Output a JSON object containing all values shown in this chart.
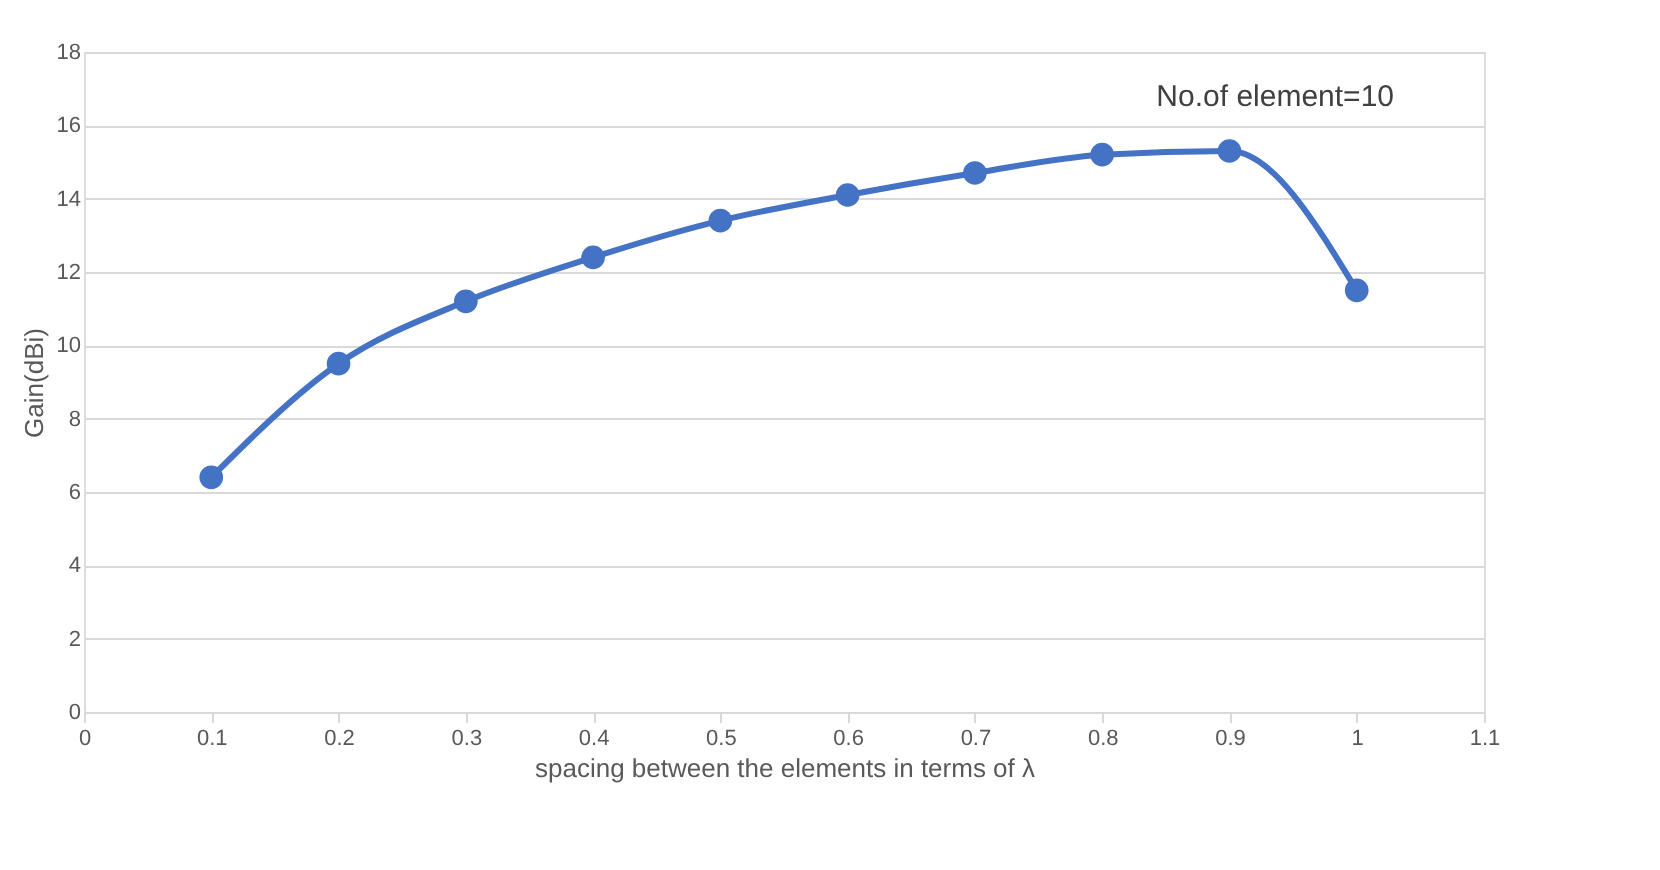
{
  "chart_data": {
    "type": "line",
    "xlabel": "spacing between the elements in terms of λ",
    "ylabel": "Gain(dBi)",
    "x": [
      0.1,
      0.2,
      0.3,
      0.4,
      0.5,
      0.6,
      0.7,
      0.8,
      0.9,
      1.0
    ],
    "series": [
      {
        "color": "#4472c4",
        "values": [
          6.4,
          9.5,
          11.2,
          12.4,
          13.4,
          14.1,
          14.7,
          15.2,
          15.3,
          11.5
        ]
      }
    ],
    "xlim": [
      0,
      1.1
    ],
    "xticks": [
      0,
      0.1,
      0.2,
      0.3,
      0.4,
      0.5,
      0.6,
      0.7,
      0.8,
      0.9,
      1,
      1.1
    ],
    "ylim": [
      0,
      18
    ],
    "yticks": [
      0,
      2,
      4,
      6,
      8,
      10,
      12,
      14,
      16,
      18
    ],
    "grid": "y",
    "marker": "circle",
    "line_style": "solid",
    "annotations": [
      "No.of element=10"
    ]
  }
}
